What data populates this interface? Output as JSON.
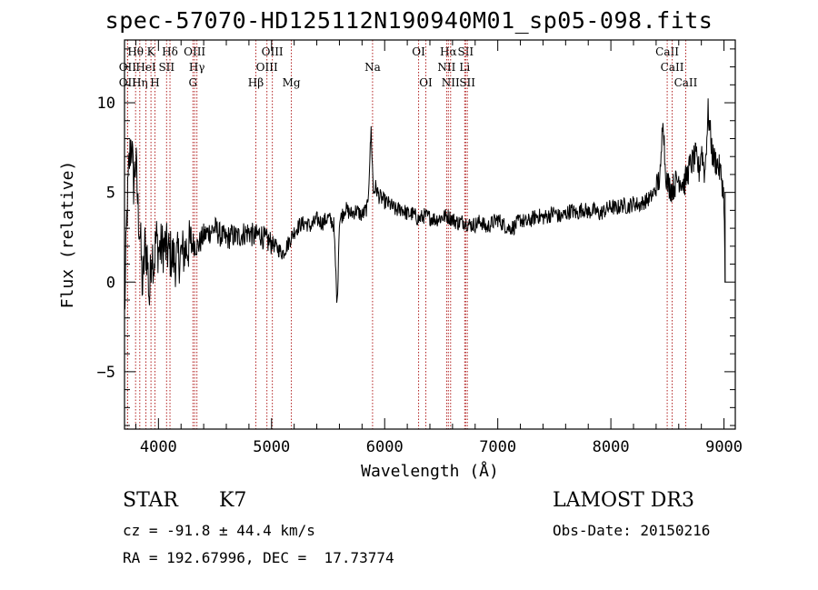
{
  "chart_data": {
    "type": "line",
    "title": "spec-57070-HD125112N190940M01_sp05-098.fits",
    "xlabel": "Wavelength (Å)",
    "ylabel": "Flux (relative)",
    "xlim": [
      3700,
      9100
    ],
    "ylim": [
      -8.2,
      13.5
    ],
    "xticks": [
      4000,
      5000,
      6000,
      7000,
      8000,
      9000
    ],
    "yticks": [
      -5,
      0,
      5,
      10
    ],
    "grid": false,
    "line_color": "#000000",
    "marker_color": "#b22222",
    "series": [
      {
        "x": [
          3700,
          3720,
          3740,
          3760,
          3780,
          3800,
          3820,
          3840,
          3860,
          3880,
          3900,
          3920,
          3940,
          3960,
          3980,
          4000,
          4050,
          4100,
          4150,
          4200,
          4250,
          4300,
          4350,
          4400,
          4450,
          4500,
          4550,
          4600,
          4650,
          4700,
          4750,
          4800,
          4850,
          4900,
          4950,
          5000,
          5050,
          5100,
          5150,
          5200,
          5250,
          5300,
          5350,
          5400,
          5450,
          5500,
          5550,
          5580,
          5600,
          5650,
          5700,
          5750,
          5800,
          5850,
          5880,
          5900,
          5920,
          5950,
          6000,
          6050,
          6100,
          6150,
          6200,
          6250,
          6300,
          6350,
          6400,
          6450,
          6500,
          6550,
          6600,
          6650,
          6700,
          6750,
          6800,
          6850,
          6900,
          6950,
          7000,
          7050,
          7100,
          7150,
          7200,
          7250,
          7300,
          7350,
          7400,
          7450,
          7500,
          7550,
          7600,
          7650,
          7700,
          7750,
          7800,
          7850,
          7900,
          7950,
          8000,
          8050,
          8100,
          8150,
          8200,
          8250,
          8300,
          8350,
          8400,
          8440,
          8460,
          8480,
          8500,
          8540,
          8600,
          8650,
          8700,
          8750,
          8780,
          8800,
          8830,
          8860,
          8900,
          8950,
          8980,
          9000,
          9010
        ],
        "y": [
          -2.0,
          3.5,
          6.5,
          8.0,
          5.5,
          6.8,
          4.0,
          2.5,
          -0.5,
          2.0,
          1.5,
          -1.0,
          2.0,
          1.0,
          2.5,
          1.8,
          2.0,
          1.6,
          1.2,
          1.5,
          1.9,
          2.2,
          2.0,
          2.6,
          2.8,
          3.0,
          2.6,
          2.4,
          2.6,
          2.5,
          2.7,
          2.8,
          2.5,
          2.7,
          2.3,
          2.2,
          1.9,
          1.6,
          2.2,
          2.8,
          3.2,
          3.3,
          3.1,
          3.5,
          3.3,
          3.6,
          3.2,
          -1.3,
          3.4,
          4.1,
          3.8,
          4.0,
          3.7,
          4.2,
          8.5,
          5.0,
          5.3,
          4.8,
          4.5,
          4.3,
          4.0,
          4.1,
          3.8,
          3.8,
          3.5,
          3.7,
          3.6,
          3.5,
          3.6,
          3.7,
          3.5,
          3.3,
          3.4,
          3.2,
          3.2,
          3.4,
          3.0,
          3.3,
          3.5,
          3.2,
          3.0,
          3.1,
          3.5,
          3.3,
          3.5,
          3.7,
          3.6,
          3.7,
          3.9,
          3.6,
          3.8,
          4.0,
          3.8,
          4.1,
          3.9,
          4.0,
          3.8,
          4.0,
          4.2,
          4.1,
          4.3,
          4.2,
          4.4,
          4.3,
          4.5,
          4.7,
          5.2,
          6.0,
          9.6,
          6.5,
          5.5,
          5.2,
          5.8,
          5.5,
          6.5,
          7.0,
          6.2,
          7.5,
          6.0,
          9.5,
          7.0,
          6.5,
          5.8,
          4.6,
          0.0
        ]
      }
    ],
    "line_ids": [
      {
        "label": "OII",
        "x": 3727,
        "row": 2
      },
      {
        "label": "OII",
        "x": 3727,
        "row": 3
      },
      {
        "label": "Hθ",
        "x": 3798,
        "row": 1
      },
      {
        "label": "Hη",
        "x": 3835,
        "row": 3
      },
      {
        "label": "HeI",
        "x": 3889,
        "row": 2
      },
      {
        "label": "K",
        "x": 3934,
        "row": 1
      },
      {
        "label": "H",
        "x": 3969,
        "row": 3
      },
      {
        "label": "SII",
        "x": 4072,
        "row": 2
      },
      {
        "label": "Hδ",
        "x": 4102,
        "row": 1
      },
      {
        "label": "OIII",
        "x": 4320,
        "row": 1
      },
      {
        "label": "Hγ",
        "x": 4340,
        "row": 2
      },
      {
        "label": "G",
        "x": 4305,
        "row": 3
      },
      {
        "label": "Hβ",
        "x": 4861,
        "row": 3
      },
      {
        "label": "OIII",
        "x": 5007,
        "row": 1
      },
      {
        "label": "OIII",
        "x": 4959,
        "row": 2
      },
      {
        "label": "Mg",
        "x": 5175,
        "row": 3
      },
      {
        "label": "Na",
        "x": 5893,
        "row": 2
      },
      {
        "label": "OI",
        "x": 6300,
        "row": 1
      },
      {
        "label": "OI",
        "x": 6364,
        "row": 3
      },
      {
        "label": "Hα",
        "x": 6563,
        "row": 1
      },
      {
        "label": "NII",
        "x": 6548,
        "row": 2
      },
      {
        "label": "NII",
        "x": 6583,
        "row": 3
      },
      {
        "label": "SII",
        "x": 6716,
        "row": 1
      },
      {
        "label": "Li",
        "x": 6708,
        "row": 2
      },
      {
        "label": "SII",
        "x": 6731,
        "row": 3
      },
      {
        "label": "CaII",
        "x": 8498,
        "row": 1
      },
      {
        "label": "CaII",
        "x": 8542,
        "row": 2
      },
      {
        "label": "CaII",
        "x": 8662,
        "row": 3
      }
    ]
  },
  "info": {
    "class": "STAR",
    "subclass": "K7",
    "survey": "LAMOST DR3",
    "redshift": "cz = -91.8 ± 44.4 km/s",
    "obs_date": "Obs-Date: 20150216",
    "coords": "RA = 192.67996, DEC =  17.73774"
  }
}
